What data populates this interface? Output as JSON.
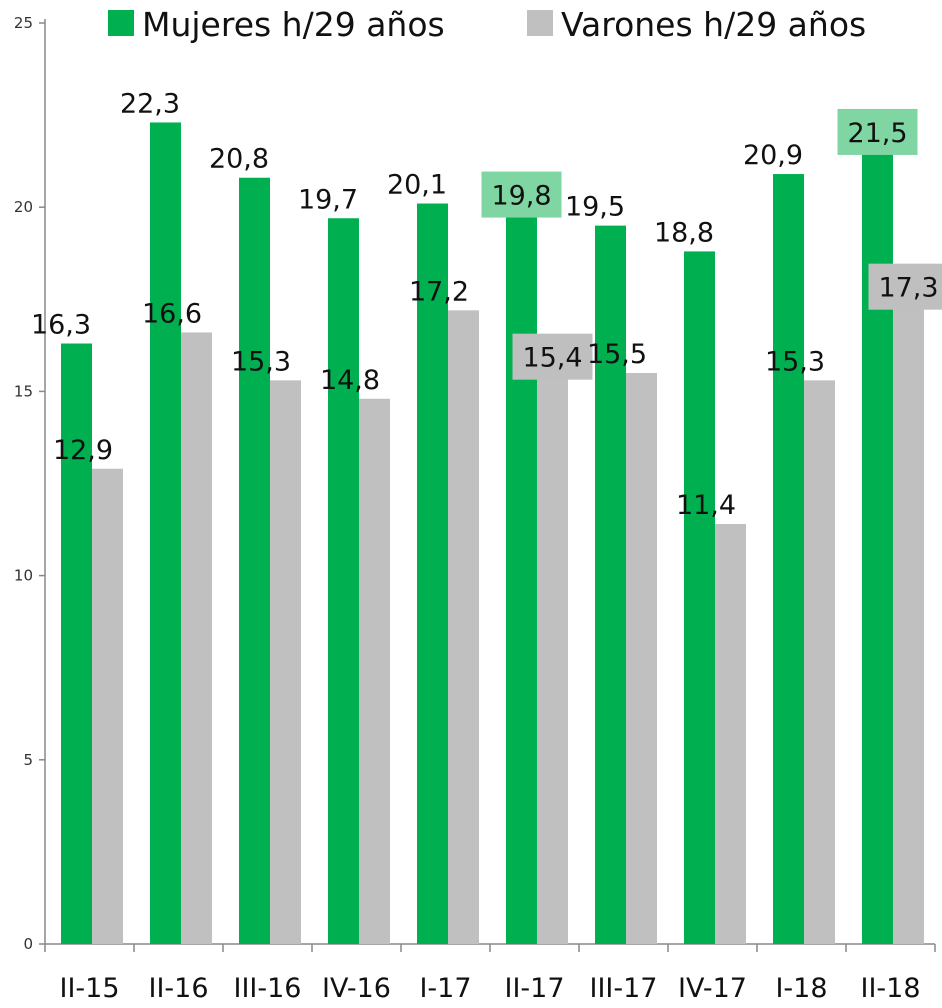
{
  "chart_data": {
    "type": "bar",
    "categories": [
      "II-15",
      "II-16",
      "III-16",
      "IV-16",
      "I-17",
      "II-17",
      "III-17",
      "IV-17",
      "I-18",
      "II-18"
    ],
    "series": [
      {
        "name": "Mujeres h/29 años",
        "color": "#00b050",
        "values": [
          16.3,
          22.3,
          20.8,
          19.7,
          20.1,
          19.8,
          19.5,
          18.8,
          20.9,
          21.5
        ],
        "labels": [
          "16,3",
          "22,3",
          "20,8",
          "19,7",
          "20,1",
          "19,8",
          "19,5",
          "18,8",
          "20,9",
          "21,5"
        ],
        "highlighted_labels": [
          "II-17",
          "II-18"
        ],
        "highlight_color": "#7fd6a2"
      },
      {
        "name": "Varones h/29 años",
        "color": "#c0c0c0",
        "values": [
          12.9,
          16.6,
          15.3,
          14.8,
          17.2,
          15.4,
          15.5,
          11.4,
          15.3,
          17.3
        ],
        "labels": [
          "12,9",
          "16,6",
          "15,3",
          "14,8",
          "17,2",
          "15,4",
          "15,5",
          "11,4",
          "15,3",
          "17,3"
        ],
        "highlighted_labels": [
          "II-17",
          "II-18"
        ],
        "highlight_color": "#bfbfbf"
      }
    ],
    "y_ticks": [
      0,
      5,
      10,
      15,
      20,
      25
    ],
    "ylim": [
      0,
      25
    ],
    "grid": false,
    "legend_position": "top"
  }
}
